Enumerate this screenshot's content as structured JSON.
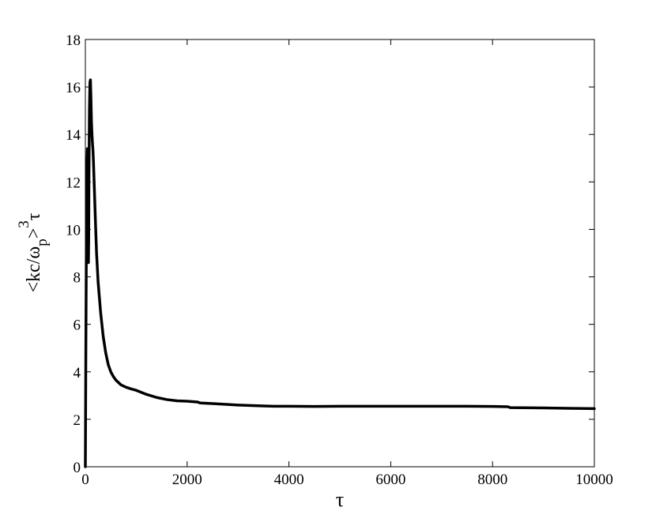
{
  "chart_data": {
    "type": "line",
    "title": "",
    "xlabel": "τ",
    "ylabel": {
      "prefix": "<kc/ω",
      "subscript": "p",
      "close": ">",
      "superscript": "3",
      "suffix": "τ"
    },
    "xlim": [
      0,
      10000
    ],
    "ylim": [
      0,
      18
    ],
    "x_ticks": [
      0,
      2000,
      4000,
      6000,
      8000,
      10000
    ],
    "y_ticks": [
      0,
      2,
      4,
      6,
      8,
      10,
      12,
      14,
      16,
      18
    ],
    "grid": false,
    "legend": "none",
    "line_color": "#000000",
    "series": [
      {
        "x": [
          0,
          10,
          20,
          30,
          40,
          50,
          55,
          60,
          65,
          70,
          80,
          90,
          100,
          110,
          120,
          130,
          140,
          150,
          160,
          180,
          200,
          220,
          250,
          300,
          350,
          400,
          450,
          500,
          550,
          600,
          700,
          800,
          900,
          1000,
          1200,
          1400,
          1600,
          1800,
          2000,
          2200,
          2250,
          2500,
          3000,
          3500,
          3700,
          4000,
          4500,
          5000,
          5500,
          6000,
          6500,
          7000,
          7500,
          8000,
          8300,
          8350,
          9000,
          9500,
          10000
        ],
        "y": [
          0,
          5.0,
          9.5,
          12.5,
          13.4,
          13.3,
          10.0,
          8.6,
          9.5,
          12.0,
          15.0,
          16.2,
          16.3,
          15.5,
          14.5,
          14.0,
          13.6,
          13.3,
          12.8,
          11.5,
          10.2,
          9.0,
          7.8,
          6.5,
          5.5,
          4.8,
          4.3,
          4.0,
          3.8,
          3.65,
          3.45,
          3.35,
          3.28,
          3.22,
          3.05,
          2.92,
          2.83,
          2.78,
          2.76,
          2.73,
          2.69,
          2.66,
          2.6,
          2.56,
          2.55,
          2.55,
          2.54,
          2.55,
          2.55,
          2.55,
          2.55,
          2.55,
          2.55,
          2.54,
          2.53,
          2.49,
          2.48,
          2.46,
          2.45
        ]
      }
    ]
  }
}
